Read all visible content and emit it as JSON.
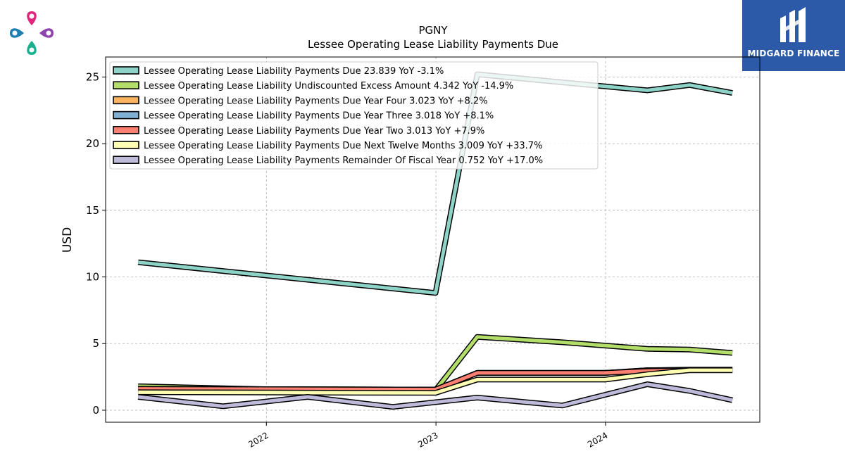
{
  "logos": {
    "left_icon": "clover-drops-logo",
    "right_icon": "midgard-m-logo",
    "right_text": "MIDGARD FINANCE",
    "right_bg": "#2d5aa8"
  },
  "chart_data": {
    "type": "line",
    "title": "PGNY",
    "subtitle": "Lessee Operating Lease Liability Payments Due",
    "xlabel": "",
    "ylabel": "USD",
    "xlim": [
      "2021-01-20",
      "2024-11-28"
    ],
    "ylim": [
      -0.9,
      26.5
    ],
    "grid": true,
    "legend_position": "top-left",
    "x_ticks": [
      {
        "label": "2022",
        "date": "2022-01-01"
      },
      {
        "label": "2023",
        "date": "2023-01-01"
      },
      {
        "label": "2024",
        "date": "2024-01-01"
      }
    ],
    "y_ticks": [
      0,
      5,
      10,
      15,
      20,
      25
    ],
    "series": [
      {
        "name": "Lessee Operating Lease Liability Payments Due",
        "legend": "Lessee Operating Lease Liability Payments Due  23.839 YoY -3.1%",
        "color": "#8dd3c7",
        "points": [
          [
            "2021-03-31",
            11.1
          ],
          [
            "2022-12-31",
            8.8
          ],
          [
            "2023-03-31",
            25.2
          ],
          [
            "2024-03-31",
            24.0
          ],
          [
            "2024-06-30",
            24.4
          ],
          [
            "2024-09-30",
            23.8
          ]
        ]
      },
      {
        "name": "Lessee Operating Lease Liability Undiscounted Excess Amount",
        "legend": "Lessee Operating Lease Liability Undiscounted Excess Amount  4.342 YoY -14.9%",
        "color": "#b3de69",
        "points": [
          [
            "2021-03-31",
            1.8
          ],
          [
            "2021-09-30",
            1.65
          ],
          [
            "2022-03-31",
            1.5
          ],
          [
            "2022-09-30",
            1.5
          ],
          [
            "2022-12-31",
            1.5
          ],
          [
            "2023-03-31",
            5.5
          ],
          [
            "2023-09-30",
            5.1
          ],
          [
            "2024-03-31",
            4.6
          ],
          [
            "2024-06-30",
            4.55
          ],
          [
            "2024-09-30",
            4.3
          ]
        ]
      },
      {
        "name": "Lessee Operating Lease Liability Payments Due Year Four",
        "legend": "Lessee Operating Lease Liability Payments Due Year Four  3.023 YoY +8.2%",
        "color": "#fdb462",
        "points": [
          [
            "2021-03-31",
            1.6
          ],
          [
            "2022-12-31",
            1.55
          ],
          [
            "2023-03-31",
            2.8
          ],
          [
            "2023-12-31",
            2.8
          ],
          [
            "2024-03-31",
            3.0
          ],
          [
            "2024-06-30",
            3.05
          ],
          [
            "2024-09-30",
            3.05
          ]
        ]
      },
      {
        "name": "Lessee Operating Lease Liability Payments Due Year Three",
        "legend": "Lessee Operating Lease Liability Payments Due Year Three  3.018 YoY +8.1%",
        "color": "#80b1d3",
        "points": [
          [
            "2021-03-31",
            1.6
          ],
          [
            "2022-12-31",
            1.55
          ],
          [
            "2023-03-31",
            2.8
          ],
          [
            "2023-12-31",
            2.8
          ],
          [
            "2024-03-31",
            3.0
          ],
          [
            "2024-06-30",
            3.02
          ],
          [
            "2024-09-30",
            3.02
          ]
        ]
      },
      {
        "name": "Lessee Operating Lease Liability Payments Due Year Two",
        "legend": "Lessee Operating Lease Liability Payments Due Year Two  3.013 YoY +7.9%",
        "color": "#fb8072",
        "points": [
          [
            "2021-03-31",
            1.6
          ],
          [
            "2022-12-31",
            1.55
          ],
          [
            "2023-03-31",
            2.8
          ],
          [
            "2023-12-31",
            2.8
          ],
          [
            "2024-03-31",
            2.95
          ],
          [
            "2024-06-30",
            3.0
          ],
          [
            "2024-09-30",
            3.0
          ]
        ]
      },
      {
        "name": "Lessee Operating Lease Liability Payments Due Next Twelve Months",
        "legend": "Lessee Operating Lease Liability Payments Due Next Twelve Months  3.009 YoY +33.7%",
        "color": "#ffffb3",
        "points": [
          [
            "2021-03-31",
            1.35
          ],
          [
            "2022-12-31",
            1.3
          ],
          [
            "2023-03-31",
            2.3
          ],
          [
            "2023-12-31",
            2.3
          ],
          [
            "2024-03-31",
            2.7
          ],
          [
            "2024-06-30",
            3.0
          ],
          [
            "2024-09-30",
            3.0
          ]
        ]
      },
      {
        "name": "Lessee Operating Lease Liability Payments Remainder Of Fiscal Year",
        "legend": "Lessee Operating Lease Liability Payments Remainder Of Fiscal Year  0.752 YoY +17.0%",
        "color": "#bebada",
        "points": [
          [
            "2021-03-31",
            1.0
          ],
          [
            "2021-09-30",
            0.3
          ],
          [
            "2022-03-31",
            1.0
          ],
          [
            "2022-09-30",
            0.25
          ],
          [
            "2023-03-31",
            0.95
          ],
          [
            "2023-09-30",
            0.35
          ],
          [
            "2024-03-31",
            1.95
          ],
          [
            "2024-06-30",
            1.45
          ],
          [
            "2024-09-30",
            0.75
          ]
        ]
      }
    ]
  }
}
